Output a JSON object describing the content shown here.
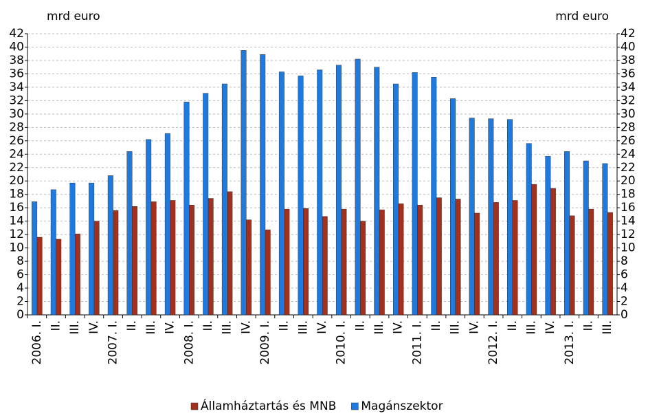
{
  "chart_data": {
    "type": "bar",
    "y_label": "mrd euro",
    "y2_label": "mrd euro",
    "categories": [
      "2006. I.",
      "II.",
      "III.",
      "IV.",
      "2007. I.",
      "II.",
      "III.",
      "IV.",
      "2008. I.",
      "II.",
      "III.",
      "IV.",
      "2009. I.",
      "II.",
      "III.",
      "IV.",
      "2010. I.",
      "II.",
      "III.",
      "IV.",
      "2011. I.",
      "II.",
      "III.",
      "IV.",
      "2012. I.",
      "II.",
      "III.",
      "IV.",
      "2013. I.",
      "II.",
      "III."
    ],
    "series": [
      {
        "name": "Államháztartás és MNB",
        "color": "#a3301d",
        "values": [
          11.6,
          11.3,
          12.1,
          14.0,
          15.6,
          16.2,
          16.9,
          17.1,
          16.4,
          17.4,
          18.4,
          14.2,
          12.7,
          15.8,
          15.9,
          14.7,
          15.8,
          14.0,
          15.7,
          16.6,
          16.4,
          17.5,
          17.3,
          15.2,
          16.8,
          17.1,
          19.5,
          18.9,
          14.8,
          15.8,
          15.3
        ]
      },
      {
        "name": "Magánszektor",
        "color": "#1f7ae0",
        "values": [
          16.9,
          18.7,
          19.7,
          19.7,
          20.8,
          24.4,
          26.2,
          27.1,
          31.8,
          33.1,
          34.5,
          39.5,
          38.9,
          36.3,
          35.7,
          36.6,
          37.3,
          38.2,
          37.0,
          34.5,
          36.2,
          35.5,
          32.3,
          29.4,
          29.3,
          29.2,
          25.6,
          23.7,
          24.4,
          23.0,
          22.6
        ]
      }
    ],
    "ylim": [
      0,
      42
    ],
    "yticks": [
      0,
      2,
      4,
      6,
      8,
      10,
      12,
      14,
      16,
      18,
      20,
      22,
      24,
      26,
      28,
      30,
      32,
      34,
      36,
      38,
      40,
      42
    ],
    "y2lim": [
      0,
      42
    ],
    "y2ticks": [
      0,
      2,
      4,
      6,
      8,
      10,
      12,
      14,
      16,
      18,
      20,
      22,
      24,
      26,
      28,
      30,
      32,
      34,
      36,
      38,
      40,
      42
    ],
    "grid": true,
    "legend": "bottom"
  }
}
